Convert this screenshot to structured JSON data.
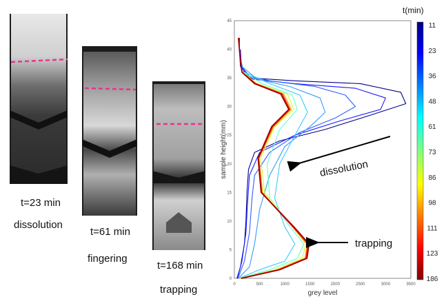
{
  "panels": [
    {
      "time_label": "t=23 min",
      "regime_label": "dissolution"
    },
    {
      "time_label": "t=61 min",
      "regime_label": "fingering"
    },
    {
      "time_label": "t=168 min",
      "regime_label": "trapping"
    }
  ],
  "annotations": {
    "dissolution": "dissolution",
    "trapping": "trapping"
  },
  "colors": {
    "marker_line": "#e8338f",
    "arrow": "#000000"
  },
  "chart_data": {
    "type": "line",
    "xlabel": "grey level",
    "ylabel": "sample height(mm)",
    "xlim": [
      0,
      3500
    ],
    "ylim": [
      0,
      45
    ],
    "x_ticks": [
      "0",
      "500",
      "1000",
      "1500",
      "2000",
      "2500",
      "3000",
      "3500"
    ],
    "y_ticks": [
      "0",
      "5",
      "10",
      "15",
      "20",
      "25",
      "30",
      "35",
      "40",
      "45"
    ],
    "grid": false,
    "colorbar": {
      "title": "t(min)",
      "ticks": [
        "11",
        "23",
        "36",
        "48",
        "61",
        "73",
        "86",
        "98",
        "111",
        "123",
        "186"
      ],
      "colors": [
        "#00007f",
        "#0000ff",
        "#007fff",
        "#00ffff",
        "#7fff7f",
        "#ffff00",
        "#ff7f00",
        "#ff0000",
        "#7f0000"
      ]
    },
    "series": [
      {
        "color": "#00008b",
        "points": [
          [
            50,
            0
          ],
          [
            120,
            2
          ],
          [
            200,
            6
          ],
          [
            230,
            10
          ],
          [
            250,
            15
          ],
          [
            280,
            19
          ],
          [
            400,
            22
          ],
          [
            900,
            24
          ],
          [
            1800,
            26
          ],
          [
            2700,
            28.5
          ],
          [
            3400,
            30.5
          ],
          [
            3300,
            32.5
          ],
          [
            2500,
            34
          ],
          [
            1200,
            34.5
          ],
          [
            300,
            35
          ],
          [
            120,
            37
          ],
          [
            100,
            40
          ],
          [
            100,
            42
          ]
        ]
      },
      {
        "color": "#1a1aff",
        "points": [
          [
            60,
            0
          ],
          [
            150,
            3
          ],
          [
            230,
            8
          ],
          [
            260,
            13
          ],
          [
            300,
            18
          ],
          [
            500,
            22
          ],
          [
            1200,
            25
          ],
          [
            2100,
            27.5
          ],
          [
            2900,
            29.5
          ],
          [
            3000,
            31.5
          ],
          [
            2400,
            33.2
          ],
          [
            1200,
            34
          ],
          [
            350,
            34.8
          ],
          [
            140,
            37
          ],
          [
            120,
            40
          ]
        ]
      },
      {
        "color": "#2b5cff",
        "points": [
          [
            70,
            0
          ],
          [
            200,
            3
          ],
          [
            300,
            8
          ],
          [
            350,
            14
          ],
          [
            400,
            18
          ],
          [
            700,
            22
          ],
          [
            1300,
            25.5
          ],
          [
            2000,
            28
          ],
          [
            2400,
            30
          ],
          [
            2200,
            32
          ],
          [
            1600,
            33.5
          ],
          [
            700,
            34.5
          ],
          [
            200,
            35.5
          ],
          [
            130,
            38
          ]
        ]
      },
      {
        "color": "#3399ff",
        "points": [
          [
            80,
            0
          ],
          [
            300,
            2
          ],
          [
            400,
            6
          ],
          [
            500,
            12
          ],
          [
            700,
            18
          ],
          [
            1000,
            23
          ],
          [
            1500,
            26.5
          ],
          [
            1800,
            29
          ],
          [
            1700,
            31.5
          ],
          [
            1100,
            33.5
          ],
          [
            450,
            34.8
          ],
          [
            150,
            37
          ]
        ]
      },
      {
        "color": "#33ccff",
        "points": [
          [
            90,
            0
          ],
          [
            500,
            1.5
          ],
          [
            1000,
            3
          ],
          [
            1200,
            6
          ],
          [
            1000,
            9
          ],
          [
            800,
            14
          ],
          [
            900,
            20
          ],
          [
            1200,
            25
          ],
          [
            1450,
            29
          ],
          [
            1300,
            32
          ],
          [
            700,
            34
          ],
          [
            200,
            36
          ]
        ]
      },
      {
        "color": "#66ffcc",
        "points": [
          [
            100,
            0
          ],
          [
            700,
            1.5
          ],
          [
            1250,
            3.5
          ],
          [
            1380,
            6
          ],
          [
            1100,
            9
          ],
          [
            700,
            14
          ],
          [
            650,
            20
          ],
          [
            900,
            26
          ],
          [
            1250,
            29.5
          ],
          [
            1150,
            32
          ],
          [
            550,
            34
          ],
          [
            180,
            36
          ]
        ]
      },
      {
        "color": "#ccff33",
        "points": [
          [
            110,
            0
          ],
          [
            800,
            1.5
          ],
          [
            1350,
            3.5
          ],
          [
            1420,
            6
          ],
          [
            1150,
            9
          ],
          [
            600,
            15
          ],
          [
            520,
            21
          ],
          [
            800,
            26.5
          ],
          [
            1180,
            29.5
          ],
          [
            1050,
            32.2
          ],
          [
            450,
            34
          ],
          [
            170,
            36
          ]
        ]
      },
      {
        "color": "#ffaa00",
        "points": [
          [
            120,
            0
          ],
          [
            850,
            1.5
          ],
          [
            1400,
            3.5
          ],
          [
            1440,
            6
          ],
          [
            1150,
            9
          ],
          [
            560,
            15
          ],
          [
            490,
            21
          ],
          [
            780,
            26.5
          ],
          [
            1130,
            29.5
          ],
          [
            980,
            32.2
          ],
          [
            430,
            34
          ],
          [
            160,
            36
          ]
        ]
      },
      {
        "color": "#ff2200",
        "points": [
          [
            130,
            0
          ],
          [
            880,
            1.5
          ],
          [
            1420,
            3.5
          ],
          [
            1460,
            6
          ],
          [
            1160,
            9
          ],
          [
            540,
            15
          ],
          [
            480,
            21
          ],
          [
            760,
            26.5
          ],
          [
            1100,
            29.5
          ],
          [
            950,
            32.2
          ],
          [
            420,
            34
          ],
          [
            150,
            36
          ]
        ]
      },
      {
        "color": "#a00000",
        "points": [
          [
            140,
            0
          ],
          [
            900,
            1.5
          ],
          [
            1440,
            3.5
          ],
          [
            1480,
            6
          ],
          [
            1180,
            9
          ],
          [
            530,
            15
          ],
          [
            470,
            21
          ],
          [
            740,
            26.5
          ],
          [
            1080,
            29.5
          ],
          [
            920,
            32.2
          ],
          [
            400,
            34
          ],
          [
            150,
            36
          ],
          [
            120,
            38
          ],
          [
            100,
            40
          ],
          [
            80,
            42
          ]
        ]
      }
    ]
  }
}
